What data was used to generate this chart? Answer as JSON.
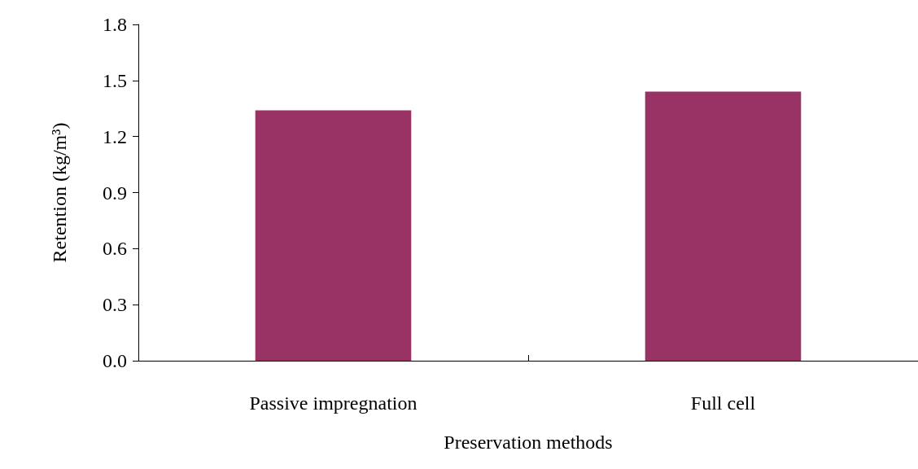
{
  "chart_data": {
    "type": "bar",
    "xlabel": "Preservation methods",
    "ylabel": "Retention (kg/m³)",
    "categories": [
      "Passive impregnation",
      "Full cell"
    ],
    "values": [
      1.34,
      1.44
    ],
    "color": "#993366",
    "ylim": [
      0,
      1.8
    ],
    "yticks": [
      {
        "value": 0,
        "label": "0.0"
      },
      {
        "value": 0.3,
        "label": "0.3"
      },
      {
        "value": 0.6,
        "label": "0.6"
      },
      {
        "value": 0.9,
        "label": "0.9"
      },
      {
        "value": 1.2,
        "label": "1.2"
      },
      {
        "value": 1.5,
        "label": "1.5"
      },
      {
        "value": 1.8,
        "label": "1.8"
      }
    ],
    "grid": false
  }
}
